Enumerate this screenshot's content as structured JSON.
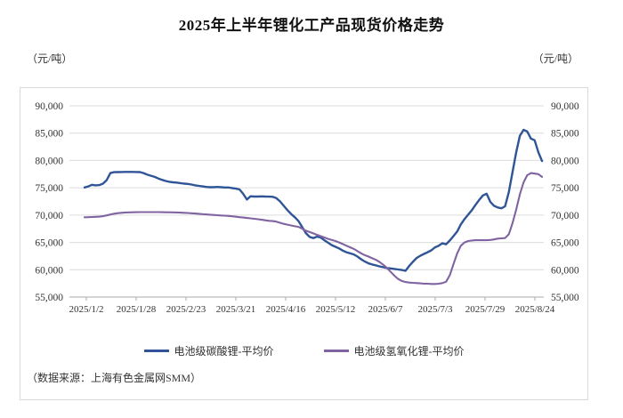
{
  "page": {
    "title": "2025年上半年锂化工产品现货价格走势",
    "unit_left": "（元/吨）",
    "unit_right": "（元/吨）",
    "source_note": "（数据来源：上海有色金属网SMM）"
  },
  "chart_data": {
    "type": "line",
    "title": "2025年上半年锂化工产品现货价格走势",
    "ylabel": "元/吨",
    "ylim": [
      55000,
      90000
    ],
    "y_ticks": [
      55000,
      60000,
      65000,
      70000,
      75000,
      80000,
      85000,
      90000
    ],
    "x_tick_labels": [
      "2025/1/2",
      "2025/1/28",
      "2025/2/23",
      "2025/3/21",
      "2025/4/16",
      "2025/5/12",
      "2025/6/7",
      "2025/7/3",
      "2025/7/29",
      "2025/8/24"
    ],
    "x_start": "2025/1/2",
    "x_end": "2025/8/24",
    "grid": true,
    "legend_position": "bottom",
    "colors": {
      "grid": "#dcdcdc",
      "axis": "#a9a9a9",
      "text": "#333333"
    },
    "series": [
      {
        "name": "电池级碳酸锂-平均价",
        "color": "#2f5597",
        "values": [
          75050,
          75250,
          75550,
          75450,
          75500,
          75750,
          76400,
          77700,
          77850,
          77870,
          77890,
          77900,
          77900,
          77900,
          77890,
          77880,
          77700,
          77400,
          77200,
          77000,
          76700,
          76450,
          76250,
          76100,
          76000,
          75950,
          75850,
          75750,
          75700,
          75600,
          75450,
          75350,
          75250,
          75150,
          75100,
          75100,
          75150,
          75100,
          75050,
          75050,
          74950,
          74850,
          74700,
          73900,
          72850,
          73450,
          73400,
          73400,
          73420,
          73400,
          73380,
          73350,
          73100,
          72500,
          71700,
          70900,
          70200,
          69600,
          68900,
          67800,
          66700,
          66000,
          65800,
          66050,
          65900,
          65400,
          64950,
          64500,
          64200,
          63900,
          63500,
          63200,
          63000,
          62800,
          62400,
          61900,
          61500,
          61150,
          60950,
          60800,
          60600,
          60450,
          60300,
          60250,
          60150,
          60050,
          59950,
          59800,
          60700,
          61450,
          62150,
          62550,
          62900,
          63200,
          63550,
          64100,
          64400,
          64850,
          64650,
          65350,
          66150,
          67000,
          68300,
          69300,
          70100,
          70900,
          71900,
          72800,
          73600,
          73900,
          72400,
          71700,
          71400,
          71250,
          71600,
          74200,
          77800,
          81500,
          84500,
          85600,
          85300,
          84000,
          83700,
          81500,
          79900
        ]
      },
      {
        "name": "电池级氢氧化锂-平均价",
        "color": "#8064a2",
        "values": [
          69600,
          69620,
          69650,
          69680,
          69720,
          69800,
          69950,
          70100,
          70250,
          70350,
          70420,
          70480,
          70500,
          70520,
          70530,
          70540,
          70550,
          70550,
          70550,
          70550,
          70540,
          70530,
          70520,
          70510,
          70500,
          70480,
          70450,
          70420,
          70380,
          70330,
          70280,
          70230,
          70180,
          70130,
          70080,
          70030,
          69980,
          69930,
          69890,
          69850,
          69780,
          69700,
          69620,
          69550,
          69480,
          69400,
          69330,
          69250,
          69150,
          69050,
          68950,
          68900,
          68800,
          68600,
          68400,
          68250,
          68100,
          67950,
          67850,
          67500,
          67150,
          66900,
          66650,
          66400,
          66150,
          65900,
          65650,
          65450,
          65250,
          65000,
          64700,
          64400,
          64100,
          63800,
          63400,
          63000,
          62650,
          62400,
          62100,
          61800,
          61400,
          60900,
          60300,
          59600,
          58900,
          58300,
          57950,
          57750,
          57650,
          57600,
          57550,
          57500,
          57450,
          57450,
          57400,
          57400,
          57450,
          57550,
          57800,
          59000,
          61000,
          63000,
          64400,
          65000,
          65250,
          65350,
          65400,
          65400,
          65400,
          65400,
          65450,
          65550,
          65700,
          65750,
          65800,
          66500,
          68500,
          71000,
          73800,
          76000,
          77300,
          77700,
          77600,
          77500,
          77000
        ]
      }
    ]
  }
}
